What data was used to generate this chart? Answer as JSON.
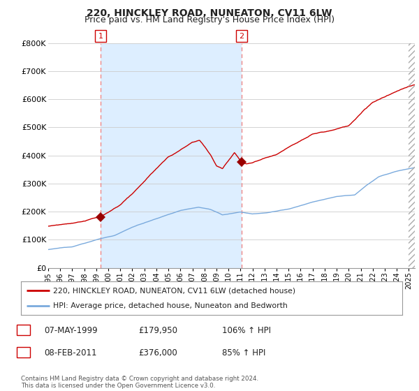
{
  "title": "220, HINCKLEY ROAD, NUNEATON, CV11 6LW",
  "subtitle": "Price paid vs. HM Land Registry's House Price Index (HPI)",
  "ylabel_ticks": [
    "£0",
    "£100K",
    "£200K",
    "£300K",
    "£400K",
    "£500K",
    "£600K",
    "£700K",
    "£800K"
  ],
  "ytick_values": [
    0,
    100000,
    200000,
    300000,
    400000,
    500000,
    600000,
    700000,
    800000
  ],
  "ylim": [
    0,
    800000
  ],
  "xlim_start": 1995.0,
  "xlim_end": 2025.5,
  "legend_entry1": "220, HINCKLEY ROAD, NUNEATON, CV11 6LW (detached house)",
  "legend_entry2": "HPI: Average price, detached house, Nuneaton and Bedworth",
  "sale1_label": "1",
  "sale1_date": "07-MAY-1999",
  "sale1_price": "£179,950",
  "sale1_hpi": "106% ↑ HPI",
  "sale2_label": "2",
  "sale2_date": "08-FEB-2011",
  "sale2_price": "£376,000",
  "sale2_hpi": "85% ↑ HPI",
  "footer": "Contains HM Land Registry data © Crown copyright and database right 2024.\nThis data is licensed under the Open Government Licence v3.0.",
  "sale1_year": 1999.35,
  "sale1_value": 179950,
  "sale2_year": 2011.1,
  "sale2_value": 376000,
  "line_color_red": "#cc0000",
  "line_color_blue": "#7aaadd",
  "shade_color": "#ddeeff",
  "marker_color_red": "#990000",
  "vline_color": "#ee8888",
  "background_color": "#ffffff",
  "grid_color": "#cccccc",
  "title_fontsize": 10,
  "subtitle_fontsize": 9
}
